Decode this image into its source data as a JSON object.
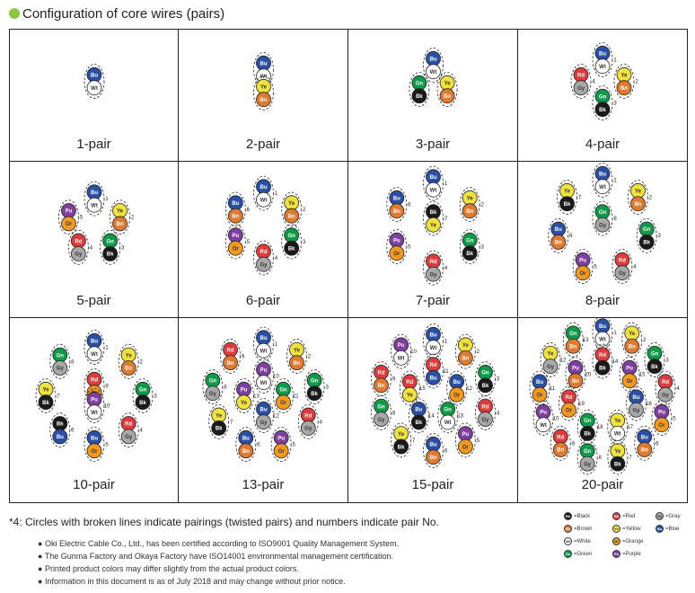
{
  "title": "Configuration of core wires (pairs)",
  "colors": {
    "Bk": {
      "fill": "#1a1a1a",
      "text": "#ffffff"
    },
    "Bn": {
      "fill": "#e07a2e",
      "text": "#ffffff"
    },
    "Wt": {
      "fill": "#ffffff",
      "text": "#333333"
    },
    "Gn": {
      "fill": "#0e9b47",
      "text": "#ffffff"
    },
    "Rd": {
      "fill": "#e03a3a",
      "text": "#ffffff"
    },
    "Ye": {
      "fill": "#f0e23c",
      "text": "#333333"
    },
    "Or": {
      "fill": "#f39a1e",
      "text": "#333333"
    },
    "Pu": {
      "fill": "#7e3fa0",
      "text": "#ffffff"
    },
    "Gy": {
      "fill": "#a8a8a8",
      "text": "#333333"
    },
    "Bu": {
      "fill": "#2a4fa8",
      "text": "#ffffff"
    }
  },
  "cells": [
    {
      "label": "1-pair",
      "rings": [
        {
          "pairs": [
            [
              "Bu",
              "Wt"
            ]
          ],
          "numbers": []
        }
      ]
    },
    {
      "label": "2-pair",
      "rings": [
        {
          "pairs": [
            [
              "Bu",
              "Wt"
            ],
            [
              "Ye",
              "Bn"
            ]
          ],
          "numbers": []
        }
      ]
    },
    {
      "label": "3-pair",
      "rings": [
        {
          "pairs": [
            [
              "Bu",
              "Wt"
            ],
            [
              "Ye",
              "Bn"
            ],
            [
              "Gn",
              "Bk"
            ]
          ],
          "numbers": []
        }
      ]
    },
    {
      "label": "4-pair",
      "rings": [
        {
          "pairs": [
            [
              "Bu",
              "Wt"
            ],
            [
              "Ye",
              "Bn"
            ],
            [
              "Gn",
              "Bk"
            ],
            [
              "Rd",
              "Gy"
            ]
          ],
          "numbers": [
            "1",
            "2",
            "3",
            "4"
          ]
        }
      ]
    },
    {
      "label": "5-pair",
      "rings": [
        {
          "pairs": [
            [
              "Bu",
              "Wt"
            ],
            [
              "Ye",
              "Bn"
            ],
            [
              "Gn",
              "Bk"
            ],
            [
              "Rd",
              "Gy"
            ],
            [
              "Pu",
              "Or"
            ]
          ],
          "numbers": [
            "1",
            "2",
            "3",
            "4",
            "5"
          ]
        }
      ]
    },
    {
      "label": "6-pair",
      "rings": [
        {
          "pairs": [
            [
              "Bu",
              "Wt"
            ],
            [
              "Ye",
              "Bn"
            ],
            [
              "Gn",
              "Bk"
            ],
            [
              "Rd",
              "Gy"
            ],
            [
              "Pu",
              "Or"
            ],
            [
              "Bu",
              "Bn"
            ]
          ],
          "numbers": [
            "1",
            "2",
            "3",
            "4",
            "5",
            "6"
          ]
        }
      ]
    },
    {
      "label": "7-pair",
      "rings": [
        {
          "pairs": [
            [
              "Bu",
              "Wt"
            ],
            [
              "Ye",
              "Bn"
            ],
            [
              "Gn",
              "Bk"
            ],
            [
              "Rd",
              "Gy"
            ],
            [
              "Pu",
              "Or"
            ],
            [
              "Bu",
              "Bn"
            ]
          ],
          "numbers": [
            "1",
            "2",
            "3",
            "4",
            "5",
            "6"
          ]
        },
        {
          "pairs": [
            [
              "Bk",
              "Ye"
            ]
          ],
          "numbers": [
            "7"
          ]
        }
      ]
    },
    {
      "label": "8-pair",
      "rings": [
        {
          "pairs": [
            [
              "Bu",
              "Wt"
            ],
            [
              "Ye",
              "Bn"
            ],
            [
              "Gn",
              "Bk"
            ],
            [
              "Rd",
              "Gy"
            ],
            [
              "Pu",
              "Or"
            ],
            [
              "Bu",
              "Bn"
            ],
            [
              "Ye",
              "Bk"
            ]
          ],
          "numbers": [
            "1",
            "2",
            "3",
            "4",
            "5",
            "6",
            "7"
          ]
        },
        {
          "pairs": [
            [
              "Gn",
              "Gy"
            ]
          ],
          "numbers": [
            "8"
          ]
        }
      ]
    },
    {
      "label": "10-pair",
      "rings": [
        {
          "pairs": [
            [
              "Bu",
              "Wt"
            ],
            [
              "Ye",
              "Bn"
            ],
            [
              "Gn",
              "Bk"
            ],
            [
              "Rd",
              "Gy"
            ],
            [
              "Bu",
              "Or"
            ],
            [
              "Bk",
              "Bu"
            ],
            [
              "Ye",
              "Bk"
            ],
            [
              "Gn",
              "Gy"
            ]
          ],
          "numbers": [
            "1",
            "2",
            "3",
            "4",
            "5",
            "6",
            "7",
            "8"
          ]
        },
        {
          "pairs": [
            [
              "Rd",
              "Or"
            ],
            [
              "Pu",
              "Wt"
            ]
          ],
          "numbers": [
            "9",
            "10"
          ]
        }
      ]
    },
    {
      "label": "13-pair",
      "rings": [
        {
          "pairs": [
            [
              "Bu",
              "Wt"
            ],
            [
              "Ye",
              "Bn"
            ],
            [
              "Gn",
              "Bk"
            ],
            [
              "Rd",
              "Gy"
            ],
            [
              "Pu",
              "Or"
            ],
            [
              "Bu",
              "Bn"
            ],
            [
              "Ye",
              "Bk"
            ],
            [
              "Gn",
              "Gy"
            ],
            [
              "Rd",
              "Bn"
            ]
          ],
          "numbers": [
            "1",
            "2",
            "3",
            "4",
            "5",
            "6",
            "7",
            "8",
            "9"
          ]
        },
        {
          "pairs": [
            [
              "Pu",
              "Wt"
            ],
            [
              "Gn",
              "Or"
            ],
            [
              "Bu",
              "Gy"
            ],
            [
              "Pu",
              "Ye"
            ]
          ],
          "numbers": [
            "10",
            "11",
            "12",
            "13"
          ]
        }
      ]
    },
    {
      "label": "15-pair",
      "rings": [
        {
          "pairs": [
            [
              "Bu",
              "Wt"
            ],
            [
              "Ye",
              "Bn"
            ],
            [
              "Gn",
              "Bk"
            ],
            [
              "Rd",
              "Gy"
            ],
            [
              "Pu",
              "Or"
            ],
            [
              "Bu",
              "Bn"
            ],
            [
              "Ye",
              "Bk"
            ],
            [
              "Gn",
              "Gy"
            ],
            [
              "Rd",
              "Bn"
            ],
            [
              "Pu",
              "Wt"
            ]
          ],
          "numbers": [
            "1",
            "2",
            "3",
            "4",
            "5",
            "6",
            "7",
            "8",
            "9",
            "10"
          ]
        },
        {
          "pairs": [
            [
              "Rd",
              "Bu"
            ],
            [
              "Bu",
              "Or"
            ],
            [
              "Gn",
              "Wt"
            ],
            [
              "Bu",
              "Bk"
            ],
            [
              "Rd",
              "Ye"
            ]
          ],
          "numbers": [
            "11",
            "12",
            "13",
            "14",
            "15"
          ]
        }
      ]
    },
    {
      "label": "20-pair",
      "rings": [
        {
          "pairs": [
            [
              "Bu",
              "Wt"
            ],
            [
              "Ye",
              "Bn"
            ],
            [
              "Gn",
              "Bk"
            ],
            [
              "Rd",
              "Gy"
            ],
            [
              "Pu",
              "Or"
            ],
            [
              "Bu",
              "Bn"
            ],
            [
              "Ye",
              "Bk"
            ],
            [
              "Gn",
              "Gy"
            ],
            [
              "Rd",
              "Bn"
            ],
            [
              "Pu",
              "Wt"
            ],
            [
              "Bu",
              "Or"
            ],
            [
              "Ye",
              "Gy"
            ],
            [
              "Gn",
              "Bn"
            ]
          ],
          "numbers": [
            "1",
            "2",
            "3",
            "4",
            "5",
            "6",
            "7",
            "8",
            "9",
            "10",
            "11",
            "12",
            "13"
          ]
        },
        {
          "pairs": [
            [
              "Rd",
              "Bk"
            ],
            [
              "Pu",
              "Or"
            ],
            [
              "Bu",
              "Gy"
            ],
            [
              "Ye",
              "Wt"
            ],
            [
              "Gn",
              "Bk"
            ],
            [
              "Rd",
              "Or"
            ],
            [
              "Pu",
              "Bn"
            ]
          ],
          "numbers": [
            "14",
            "15",
            "16",
            "17",
            "18",
            "19",
            "20"
          ]
        }
      ]
    }
  ],
  "footnote": "*4: Circles with broken lines indicate pairings (twisted pairs) and numbers indicate pair No.",
  "notes": [
    "Oki Electric Cable Co., Ltd., has been certified according to ISO9001 Quality Management System.",
    "The Gunma Factory and Okaya Factory have ISO14001 environmental management certification.",
    "Printed product colors may differ slightly from the actual product colors.",
    "Information in this document is as of July 2018 and may change without prior notice."
  ],
  "legend": [
    {
      "code": "Bk",
      "label": "=Black"
    },
    {
      "code": "Rd",
      "label": "=Red"
    },
    {
      "code": "Gy",
      "label": "=Gray"
    },
    {
      "code": "Bn",
      "label": "=Brown"
    },
    {
      "code": "Ye",
      "label": "=Yellow"
    },
    {
      "code": "Bu",
      "label": "=Blue"
    },
    {
      "code": "Wt",
      "label": "=White"
    },
    {
      "code": "Or",
      "label": "=Orange"
    },
    {
      "code": "Gn",
      "label": "=Green"
    },
    {
      "code": "Pu",
      "label": "=Purple"
    }
  ]
}
